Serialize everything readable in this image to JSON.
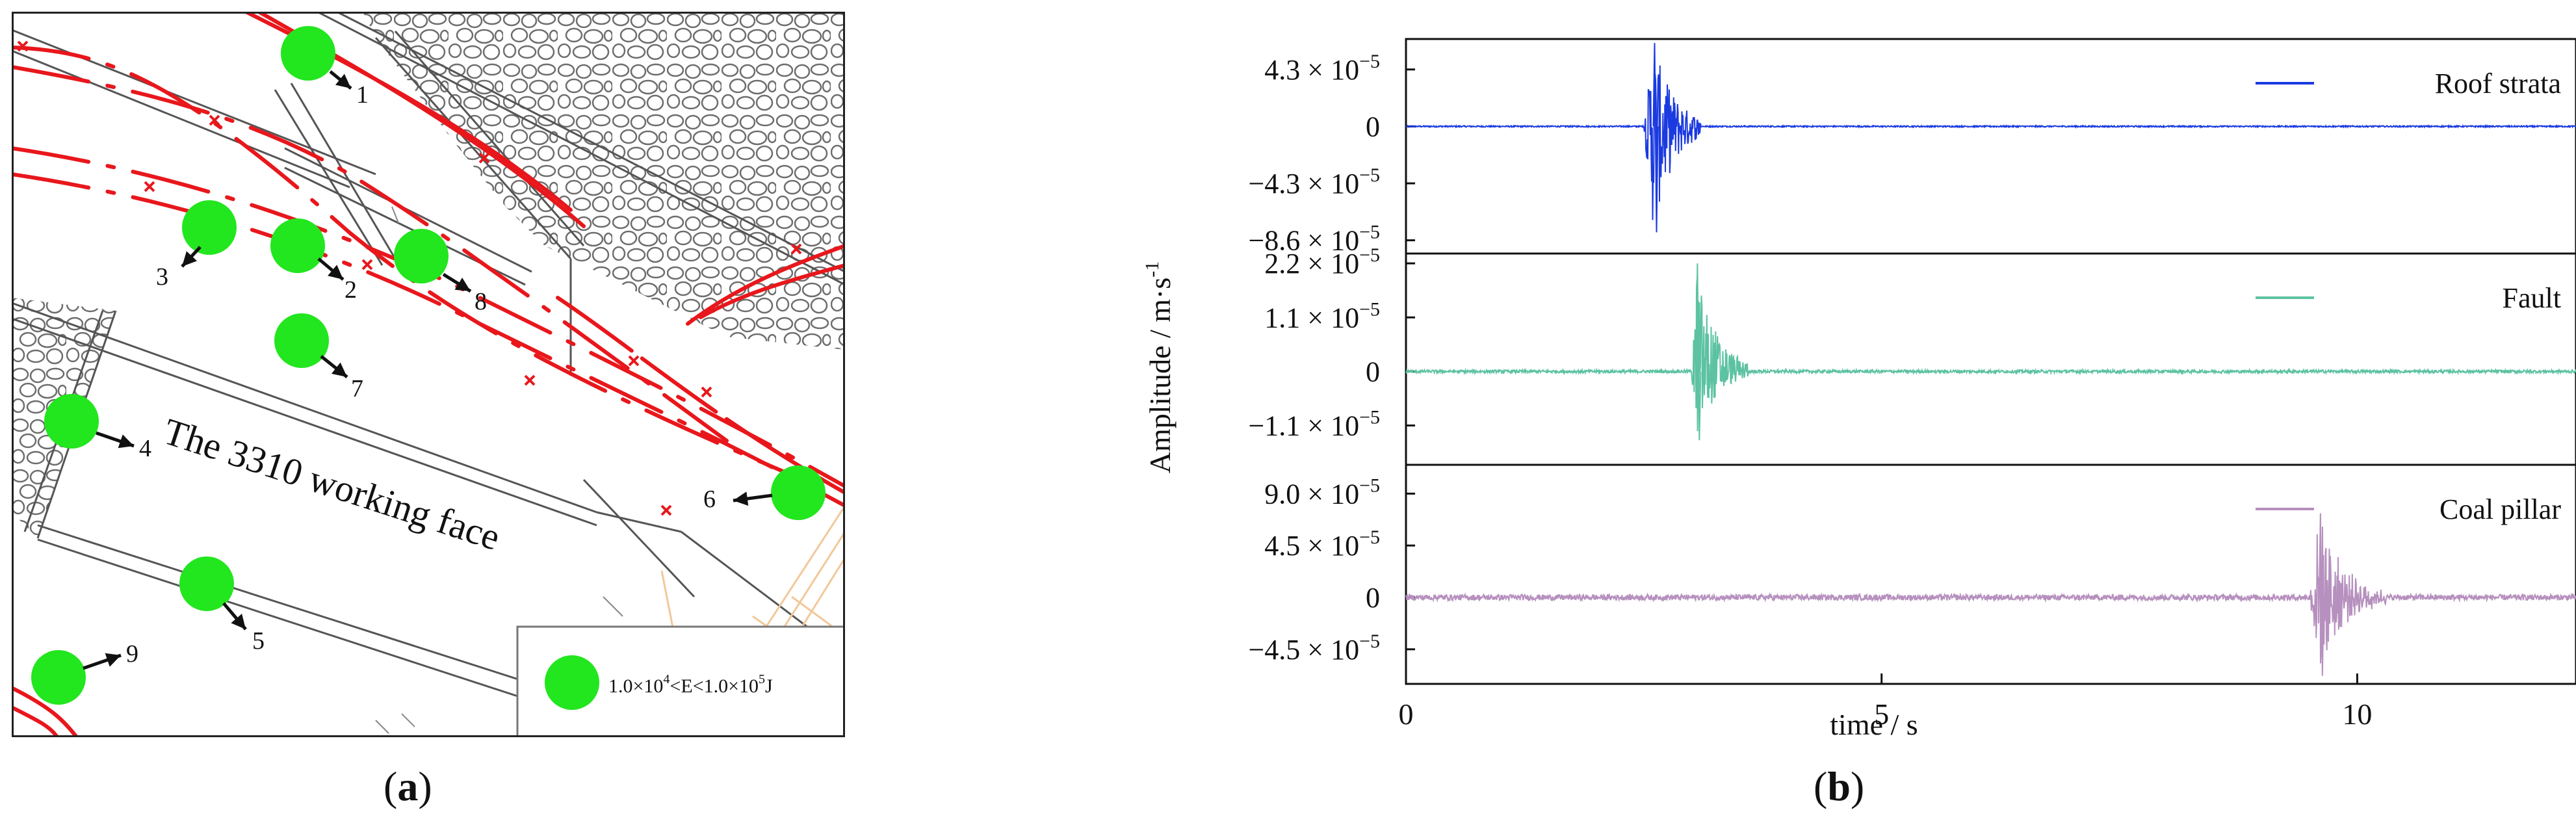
{
  "panel_a": {
    "caption": "a",
    "title": "The 3310 working face",
    "legend_label_prefix": "1.0×10",
    "legend_exp1": "4",
    "legend_label_mid": "<E<1.0×10",
    "legend_exp2": "5",
    "legend_label_suffix": "J",
    "marker_color": "#22e61e",
    "line_color": "#e8171c",
    "event_labels": [
      "1",
      "2",
      "3",
      "4",
      "5",
      "6",
      "7",
      "8",
      "9"
    ]
  },
  "panel_b": {
    "caption": "b",
    "y_axis_label": "Amplitude / m·s",
    "y_axis_exp": "-1",
    "x_axis_label": "time / s",
    "x_ticks": [
      "0",
      "5",
      "10"
    ],
    "chart_data": [
      {
        "type": "line",
        "name": "Roof strata",
        "color": "#1b3ae0",
        "xlim": [
          0,
          12.3
        ],
        "ylim": [
          -9.6,
          6.6
        ],
        "y_unit_exponent": -5,
        "y_ticks": [
          {
            "mant": "4.3",
            "v": 4.3
          },
          {
            "mant": "0",
            "v": 0
          },
          {
            "mant": "−4.3",
            "v": -4.3
          },
          {
            "mant": "−8.6",
            "v": -8.6
          }
        ],
        "event": {
          "t_start": 2.5,
          "peak_time": 2.6,
          "t_end": 3.1,
          "peak_pos": 6.3,
          "peak_neg": -8.0,
          "decay": 0.22
        },
        "noise": 0.05
      },
      {
        "type": "line",
        "name": "Fault",
        "color": "#5cc2a2",
        "xlim": [
          0,
          12.3
        ],
        "ylim": [
          -1.9,
          2.4
        ],
        "y_unit_exponent": -5,
        "y_ticks": [
          {
            "mant": "2.2",
            "v": 2.2
          },
          {
            "mant": "1.1",
            "v": 1.1
          },
          {
            "mant": "0",
            "v": 0
          },
          {
            "mant": "−1.1",
            "v": -1.1
          }
        ],
        "event": {
          "t_start": 3.0,
          "peak_time": 3.05,
          "t_end": 3.6,
          "peak_pos": 2.2,
          "peak_neg": -1.4,
          "decay": 0.22
        },
        "noise": 0.03
      },
      {
        "type": "line",
        "name": "Coal pillar",
        "color": "#b690be",
        "xlim": [
          0,
          12.3
        ],
        "ylim": [
          -7.5,
          11.5
        ],
        "y_unit_exponent": -5,
        "y_ticks": [
          {
            "mant": "9.0",
            "v": 9.0
          },
          {
            "mant": "4.5",
            "v": 4.5
          },
          {
            "mant": "0",
            "v": 0
          },
          {
            "mant": "−4.5",
            "v": -4.5
          }
        ],
        "event": {
          "t_start": 9.5,
          "peak_time": 9.6,
          "t_end": 10.3,
          "peak_pos": 7.3,
          "peak_neg": -6.8,
          "decay": 0.26
        },
        "noise": 0.25
      }
    ]
  }
}
